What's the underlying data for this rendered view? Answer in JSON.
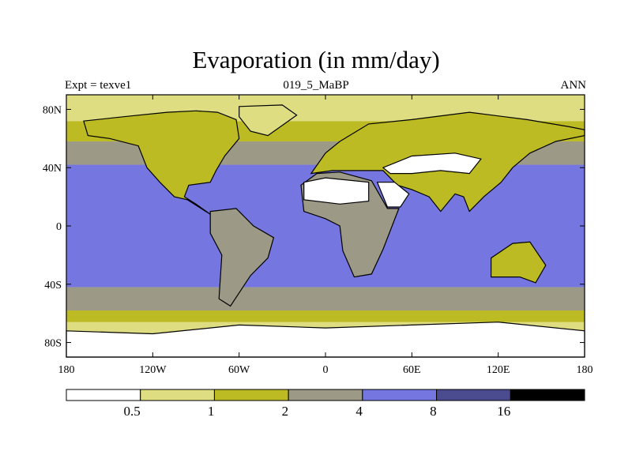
{
  "figure": {
    "title": "Evaporation (in mm/day)",
    "left_label": "Expt = texve1",
    "center_label": "019_5_MaBP",
    "right_label": "ANN"
  },
  "chart_data": {
    "type": "heatmap",
    "title": "Evaporation (in mm/day)",
    "subtitle": "019_5_MaBP",
    "xlabel": "",
    "ylabel": "",
    "xlim": [
      -180,
      180
    ],
    "ylim": [
      -90,
      90
    ],
    "x_ticks": [
      {
        "value": -180,
        "label": "180"
      },
      {
        "value": -120,
        "label": "120W"
      },
      {
        "value": -60,
        "label": "60W"
      },
      {
        "value": 0,
        "label": "0"
      },
      {
        "value": 60,
        "label": "60E"
      },
      {
        "value": 120,
        "label": "120E"
      },
      {
        "value": 180,
        "label": "180"
      }
    ],
    "y_ticks": [
      {
        "value": 80,
        "label": "80N"
      },
      {
        "value": 40,
        "label": "40N"
      },
      {
        "value": 0,
        "label": "0"
      },
      {
        "value": -40,
        "label": "40S"
      },
      {
        "value": -80,
        "label": "80S"
      }
    ],
    "colorbar": {
      "levels": [
        "0.5",
        "1",
        "2",
        "4",
        "8",
        "16"
      ],
      "colors": [
        "#ffffff",
        "#dedd82",
        "#bdbb23",
        "#9c9a86",
        "#7676e0",
        "#4b4b8f",
        "#000000"
      ]
    },
    "bands": [
      {
        "lat": [
          -90,
          -76
        ],
        "level": 0
      },
      {
        "lat": [
          -76,
          -66
        ],
        "level": 1
      },
      {
        "lat": [
          -66,
          -58
        ],
        "level": 2
      },
      {
        "lat": [
          -58,
          -42
        ],
        "level": 3
      },
      {
        "lat": [
          -42,
          42
        ],
        "level": 4
      },
      {
        "lat": [
          42,
          58
        ],
        "level": 3
      },
      {
        "lat": [
          58,
          72
        ],
        "level": 2
      },
      {
        "lat": [
          72,
          90
        ],
        "level": 1
      }
    ],
    "land_regions": [
      {
        "name": "North America",
        "level": 2,
        "points": [
          [
            -168,
            72
          ],
          [
            -140,
            75
          ],
          [
            -110,
            78
          ],
          [
            -90,
            79
          ],
          [
            -75,
            78
          ],
          [
            -62,
            73
          ],
          [
            -60,
            60
          ],
          [
            -70,
            48
          ],
          [
            -76,
            38
          ],
          [
            -80,
            30
          ],
          [
            -95,
            28
          ],
          [
            -98,
            20
          ],
          [
            -90,
            15
          ],
          [
            -80,
            8
          ],
          [
            -96,
            18
          ],
          [
            -105,
            20
          ],
          [
            -115,
            30
          ],
          [
            -124,
            40
          ],
          [
            -130,
            55
          ],
          [
            -150,
            60
          ],
          [
            -165,
            62
          ]
        ]
      },
      {
        "name": "Greenland",
        "level": 1,
        "points": [
          [
            -60,
            82
          ],
          [
            -30,
            83
          ],
          [
            -20,
            76
          ],
          [
            -40,
            62
          ],
          [
            -52,
            65
          ],
          [
            -60,
            75
          ]
        ]
      },
      {
        "name": "South America",
        "level": 3,
        "points": [
          [
            -80,
            10
          ],
          [
            -62,
            12
          ],
          [
            -50,
            0
          ],
          [
            -36,
            -8
          ],
          [
            -40,
            -22
          ],
          [
            -52,
            -34
          ],
          [
            -66,
            -55
          ],
          [
            -74,
            -50
          ],
          [
            -72,
            -20
          ],
          [
            -80,
            -5
          ]
        ]
      },
      {
        "name": "Eurasia",
        "level": 2,
        "points": [
          [
            -10,
            36
          ],
          [
            0,
            50
          ],
          [
            10,
            58
          ],
          [
            30,
            70
          ],
          [
            60,
            73
          ],
          [
            100,
            78
          ],
          [
            140,
            73
          ],
          [
            170,
            68
          ],
          [
            180,
            66
          ],
          [
            180,
            62
          ],
          [
            160,
            58
          ],
          [
            142,
            50
          ],
          [
            130,
            40
          ],
          [
            122,
            30
          ],
          [
            110,
            20
          ],
          [
            100,
            10
          ],
          [
            96,
            20
          ],
          [
            90,
            22
          ],
          [
            80,
            10
          ],
          [
            72,
            20
          ],
          [
            60,
            25
          ],
          [
            50,
            28
          ],
          [
            40,
            38
          ],
          [
            20,
            38
          ],
          [
            5,
            38
          ]
        ]
      },
      {
        "name": "Asian interior desert",
        "level": 0,
        "points": [
          [
            40,
            40
          ],
          [
            60,
            48
          ],
          [
            90,
            50
          ],
          [
            108,
            46
          ],
          [
            100,
            36
          ],
          [
            80,
            38
          ],
          [
            60,
            36
          ],
          [
            45,
            36
          ]
        ]
      },
      {
        "name": "Africa",
        "level": 3,
        "points": [
          [
            -17,
            28
          ],
          [
            -6,
            36
          ],
          [
            10,
            37
          ],
          [
            32,
            31
          ],
          [
            43,
            12
          ],
          [
            51,
            12
          ],
          [
            40,
            -16
          ],
          [
            32,
            -33
          ],
          [
            20,
            -35
          ],
          [
            12,
            -17
          ],
          [
            10,
            0
          ],
          [
            0,
            5
          ],
          [
            -15,
            10
          ]
        ]
      },
      {
        "name": "Sahara",
        "level": 0,
        "points": [
          [
            -15,
            30
          ],
          [
            0,
            33
          ],
          [
            30,
            30
          ],
          [
            30,
            17
          ],
          [
            10,
            15
          ],
          [
            -15,
            18
          ]
        ]
      },
      {
        "name": "Arabia",
        "level": 0,
        "points": [
          [
            36,
            30
          ],
          [
            48,
            30
          ],
          [
            58,
            22
          ],
          [
            52,
            13
          ],
          [
            43,
            13
          ]
        ]
      },
      {
        "name": "Australia",
        "level": 2,
        "points": [
          [
            115,
            -22
          ],
          [
            130,
            -12
          ],
          [
            142,
            -11
          ],
          [
            153,
            -27
          ],
          [
            146,
            -39
          ],
          [
            135,
            -35
          ],
          [
            115,
            -35
          ]
        ]
      },
      {
        "name": "Antarctica",
        "level": 0,
        "points": [
          [
            -180,
            -72
          ],
          [
            -120,
            -74
          ],
          [
            -60,
            -68
          ],
          [
            0,
            -70
          ],
          [
            60,
            -68
          ],
          [
            120,
            -66
          ],
          [
            180,
            -72
          ],
          [
            180,
            -90
          ],
          [
            -180,
            -90
          ]
        ]
      }
    ]
  }
}
